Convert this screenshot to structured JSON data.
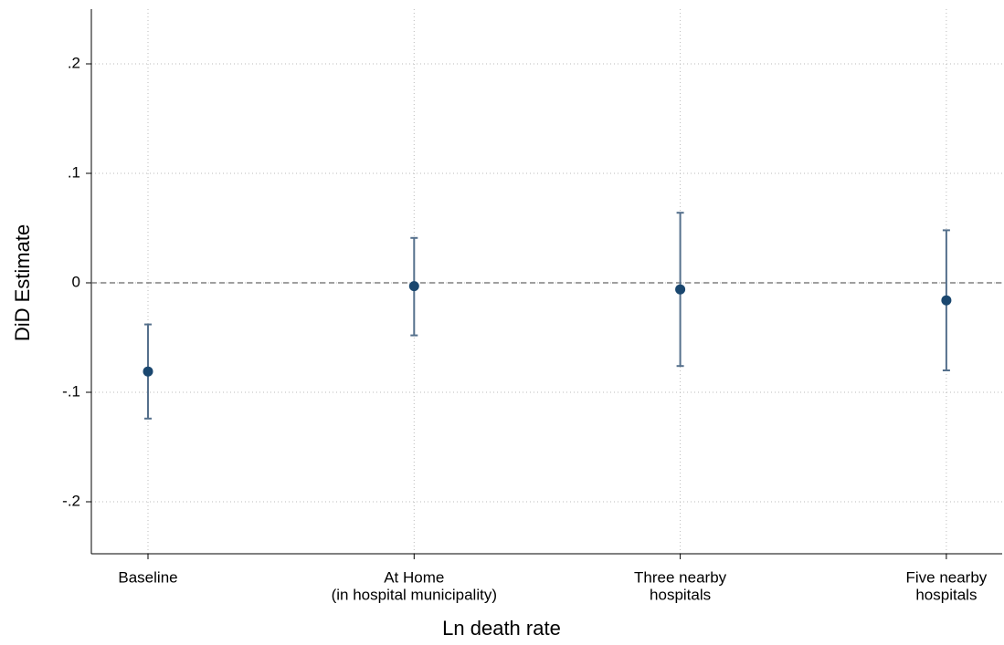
{
  "chart_data": {
    "type": "errorbar",
    "categories": [
      [
        "Baseline"
      ],
      [
        "At Home",
        "(in hospital municipality)"
      ],
      [
        "Three nearby",
        "hospitals"
      ],
      [
        "Five nearby",
        "hospitals"
      ]
    ],
    "values": [
      -0.081,
      -0.003,
      -0.006,
      -0.016
    ],
    "lower": [
      -0.124,
      -0.048,
      -0.076,
      -0.08
    ],
    "upper": [
      -0.038,
      0.041,
      0.064,
      0.048
    ],
    "color": "#1a476f",
    "errorbar_color": "#55708c",
    "x_label": "Ln death rate",
    "y_label": "DiD Estimate",
    "ylim": [
      -0.25,
      0.25
    ],
    "yticks": [
      {
        "value": -0.2,
        "label": "-.2"
      },
      {
        "value": -0.1,
        "label": "-.1"
      },
      0,
      {
        "value": 0.1,
        "label": ".1"
      },
      {
        "value": 0.2,
        "label": ".2"
      }
    ],
    "yline": 0,
    "grid": true
  }
}
